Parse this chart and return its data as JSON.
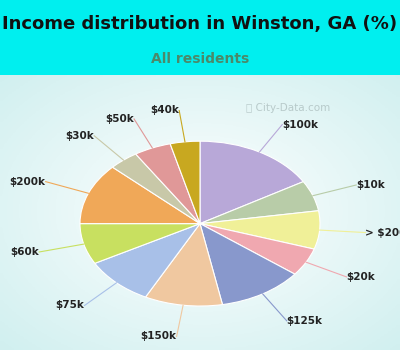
{
  "title": "Income distribution in Winston, GA (%)",
  "subtitle": "All residents",
  "title_color": "#111111",
  "subtitle_color": "#4a8a6a",
  "bg_cyan": "#00EFEF",
  "watermark": "City-Data.com",
  "slices": [
    {
      "label": "$100k",
      "value": 16.5,
      "color": "#b8a8d8"
    },
    {
      "label": "$10k",
      "value": 6.0,
      "color": "#b8cca8"
    },
    {
      "label": "> $200k",
      "value": 7.5,
      "color": "#f0f098"
    },
    {
      "label": "$20k",
      "value": 5.5,
      "color": "#f0a8b0"
    },
    {
      "label": "$125k",
      "value": 11.5,
      "color": "#8898cc"
    },
    {
      "label": "$150k",
      "value": 10.5,
      "color": "#f0c8a0"
    },
    {
      "label": "$75k",
      "value": 9.5,
      "color": "#a8c0e8"
    },
    {
      "label": "$60k",
      "value": 8.0,
      "color": "#c8e060"
    },
    {
      "label": "$200k",
      "value": 12.0,
      "color": "#f0a858"
    },
    {
      "label": "$30k",
      "value": 4.0,
      "color": "#c8c8a8"
    },
    {
      "label": "$50k",
      "value": 5.0,
      "color": "#e09898"
    },
    {
      "label": "$40k",
      "value": 4.0,
      "color": "#c8a820"
    }
  ],
  "label_fontsize": 7.5,
  "label_color": "#222222",
  "title_fontsize": 13,
  "subtitle_fontsize": 10
}
